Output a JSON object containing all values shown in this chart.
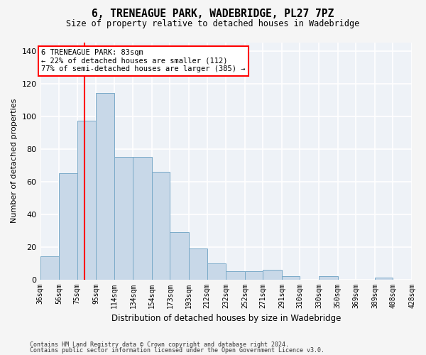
{
  "title": "6, TRENEAGUE PARK, WADEBRIDGE, PL27 7PZ",
  "subtitle": "Size of property relative to detached houses in Wadebridge",
  "xlabel": "Distribution of detached houses by size in Wadebridge",
  "ylabel": "Number of detached properties",
  "bar_color": "#c8d8e8",
  "bar_edge_color": "#7aaac8",
  "background_color": "#eef2f7",
  "grid_color": "#ffffff",
  "red_line_x": 83,
  "annotation_title": "6 TRENEAGUE PARK: 83sqm",
  "annotation_line1": "← 22% of detached houses are smaller (112)",
  "annotation_line2": "77% of semi-detached houses are larger (385) →",
  "bin_lefts": [
    36,
    56,
    75,
    95,
    114,
    134,
    154,
    173,
    193,
    212,
    232,
    252,
    271,
    291,
    310,
    330,
    350,
    369,
    389,
    408
  ],
  "bin_rights": [
    56,
    75,
    95,
    114,
    134,
    154,
    173,
    193,
    212,
    232,
    252,
    271,
    291,
    310,
    330,
    350,
    369,
    389,
    408,
    428
  ],
  "bin_labels": [
    "36sqm",
    "56sqm",
    "75sqm",
    "95sqm",
    "114sqm",
    "134sqm",
    "154sqm",
    "173sqm",
    "193sqm",
    "212sqm",
    "232sqm",
    "252sqm",
    "271sqm",
    "291sqm",
    "310sqm",
    "330sqm",
    "350sqm",
    "369sqm",
    "389sqm",
    "408sqm",
    "428sqm"
  ],
  "counts": [
    14,
    65,
    97,
    114,
    75,
    75,
    66,
    29,
    19,
    10,
    5,
    5,
    6,
    2,
    0,
    2,
    0,
    0,
    1,
    0
  ],
  "ylim": [
    0,
    145
  ],
  "yticks": [
    0,
    20,
    40,
    60,
    80,
    100,
    120,
    140
  ],
  "footer1": "Contains HM Land Registry data © Crown copyright and database right 2024.",
  "footer2": "Contains public sector information licensed under the Open Government Licence v3.0."
}
